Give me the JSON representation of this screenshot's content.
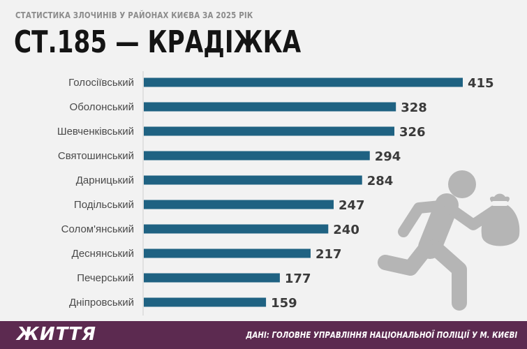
{
  "header": {
    "subtitle": "СТАТИСТИКА ЗЛОЧИНІВ У РАЙОНАХ КИЄВА ЗА 2025 РІК",
    "title": "СТ.185 — КРАДІЖКА"
  },
  "footer": {
    "logo": "ЖИТТЯ",
    "source": "ДАНІ: ГОЛОВНЕ УПРАВЛІННЯ НАЦІОНАЛЬНОЇ ПОЛІЦІЇ У М. КИЄВІ",
    "background": "#5c2a50"
  },
  "icon": {
    "name": "running-thief-with-money-bag-icon",
    "color": "#b5b5b5"
  },
  "chart_data": {
    "type": "bar",
    "orientation": "horizontal",
    "title": "СТ.185 — КРАДІЖКА",
    "subtitle": "СТАТИСТИКА ЗЛОЧИНІВ У РАЙОНАХ КИЄВА ЗА 2025 РІК",
    "categories": [
      "Голосіївський",
      "Оболонський",
      "Шевченківський",
      "Святошинський",
      "Дарницький",
      "Подільський",
      "Солом'янський",
      "Деснянський",
      "Печерський",
      "Дніпровський"
    ],
    "values": [
      415,
      328,
      326,
      294,
      284,
      247,
      240,
      217,
      177,
      159
    ],
    "bar_color": "#1f6282",
    "data_labels": true,
    "grid": false,
    "xlim": [
      0,
      415
    ]
  }
}
